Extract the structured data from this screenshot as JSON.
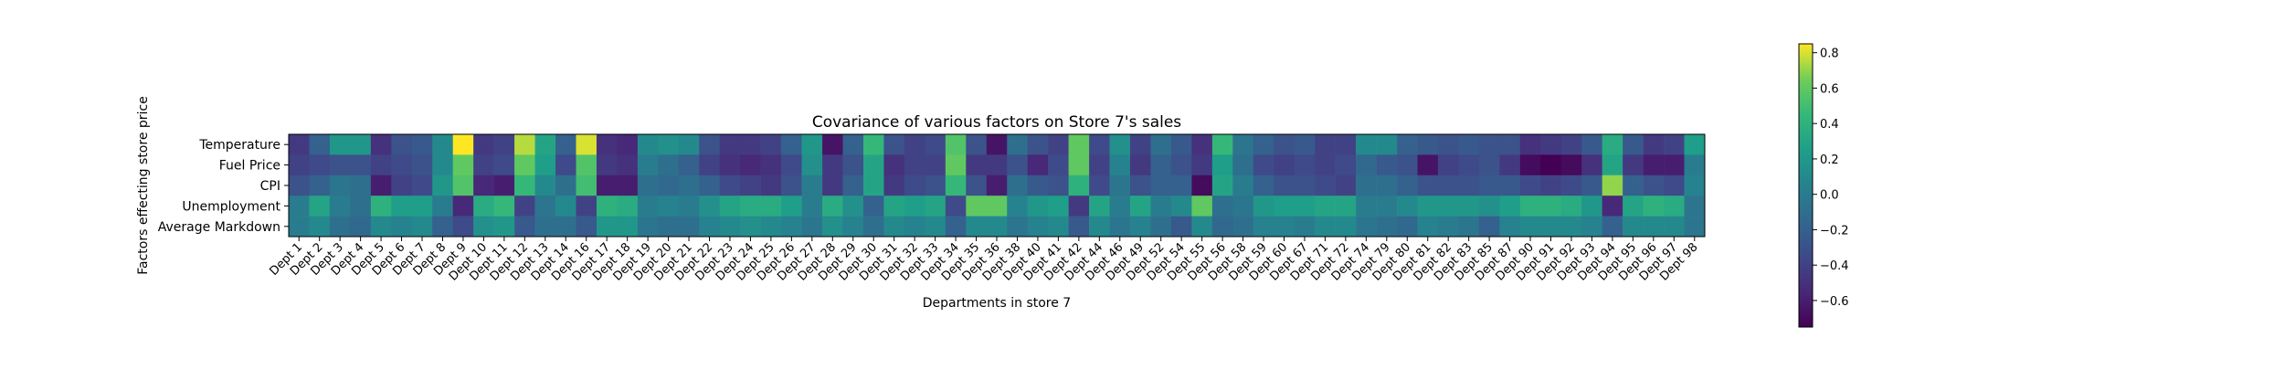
{
  "chart_data": {
    "type": "heatmap",
    "title": "Covariance of various factors on Store 7's sales",
    "xlabel": "Departments in store 7",
    "ylabel": "Factors effecting store price",
    "rows": [
      "Temperature",
      "Fuel Price",
      "CPI",
      "Unemployment",
      "Average Markdown"
    ],
    "columns": [
      "Dept 1",
      "Dept 2",
      "Dept 3",
      "Dept 4",
      "Dept 5",
      "Dept 6",
      "Dept 7",
      "Dept 8",
      "Dept 9",
      "Dept 10",
      "Dept 11",
      "Dept 12",
      "Dept 13",
      "Dept 14",
      "Dept 16",
      "Dept 17",
      "Dept 18",
      "Dept 19",
      "Dept 20",
      "Dept 21",
      "Dept 22",
      "Dept 23",
      "Dept 24",
      "Dept 25",
      "Dept 26",
      "Dept 27",
      "Dept 28",
      "Dept 29",
      "Dept 30",
      "Dept 31",
      "Dept 32",
      "Dept 33",
      "Dept 34",
      "Dept 35",
      "Dept 36",
      "Dept 38",
      "Dept 40",
      "Dept 41",
      "Dept 42",
      "Dept 44",
      "Dept 46",
      "Dept 49",
      "Dept 52",
      "Dept 54",
      "Dept 55",
      "Dept 56",
      "Dept 58",
      "Dept 59",
      "Dept 60",
      "Dept 67",
      "Dept 71",
      "Dept 72",
      "Dept 74",
      "Dept 79",
      "Dept 80",
      "Dept 81",
      "Dept 82",
      "Dept 83",
      "Dept 85",
      "Dept 87",
      "Dept 90",
      "Dept 91",
      "Dept 92",
      "Dept 93",
      "Dept 94",
      "Dept 95",
      "Dept 96",
      "Dept 97",
      "Dept 98"
    ],
    "values": [
      [
        -0.45,
        -0.2,
        0.2,
        0.2,
        -0.5,
        -0.3,
        -0.25,
        0.1,
        0.85,
        -0.45,
        -0.4,
        0.75,
        0.3,
        -0.2,
        0.8,
        -0.5,
        -0.55,
        0.1,
        0.15,
        0.1,
        -0.3,
        -0.45,
        -0.45,
        -0.4,
        -0.2,
        0.2,
        -0.65,
        -0.2,
        0.45,
        -0.3,
        -0.4,
        -0.35,
        0.55,
        -0.3,
        -0.65,
        -0.1,
        -0.3,
        -0.4,
        0.6,
        -0.35,
        0.15,
        -0.4,
        -0.1,
        -0.25,
        -0.5,
        0.45,
        -0.05,
        -0.2,
        -0.3,
        -0.25,
        -0.4,
        -0.4,
        0.1,
        0.1,
        -0.2,
        -0.25,
        -0.3,
        -0.25,
        -0.3,
        -0.3,
        -0.5,
        -0.45,
        -0.4,
        -0.25,
        0.35,
        -0.25,
        -0.45,
        -0.4,
        0.25
      ],
      [
        -0.4,
        -0.35,
        -0.3,
        -0.3,
        -0.4,
        -0.35,
        -0.3,
        0.1,
        0.6,
        -0.4,
        -0.35,
        0.6,
        0.25,
        -0.35,
        0.55,
        -0.45,
        -0.5,
        0.0,
        -0.1,
        -0.2,
        -0.4,
        -0.5,
        -0.55,
        -0.5,
        -0.35,
        0.15,
        -0.45,
        -0.3,
        0.3,
        -0.5,
        -0.4,
        -0.4,
        0.6,
        -0.45,
        -0.45,
        -0.3,
        -0.55,
        -0.35,
        0.6,
        -0.4,
        0.05,
        -0.45,
        -0.2,
        -0.3,
        -0.45,
        0.25,
        -0.1,
        -0.35,
        -0.4,
        -0.35,
        -0.4,
        -0.35,
        -0.15,
        -0.25,
        -0.3,
        -0.65,
        -0.4,
        -0.35,
        -0.3,
        -0.45,
        -0.7,
        -0.75,
        -0.7,
        -0.5,
        0.3,
        -0.45,
        -0.6,
        -0.6,
        0.0
      ],
      [
        -0.3,
        -0.2,
        -0.05,
        -0.1,
        -0.6,
        -0.4,
        -0.35,
        0.2,
        0.55,
        -0.55,
        -0.6,
        0.45,
        0.1,
        -0.1,
        0.5,
        -0.6,
        -0.6,
        -0.1,
        -0.15,
        -0.1,
        -0.2,
        -0.35,
        -0.4,
        -0.45,
        -0.3,
        0.0,
        -0.45,
        -0.2,
        0.3,
        -0.45,
        -0.35,
        -0.3,
        0.45,
        -0.3,
        -0.6,
        -0.1,
        -0.25,
        -0.3,
        0.4,
        -0.35,
        -0.05,
        -0.3,
        -0.2,
        -0.2,
        -0.7,
        0.3,
        0.0,
        -0.2,
        -0.3,
        -0.3,
        -0.35,
        -0.4,
        -0.1,
        -0.1,
        -0.2,
        -0.3,
        -0.3,
        -0.3,
        -0.25,
        -0.25,
        -0.35,
        -0.4,
        -0.35,
        -0.25,
        0.7,
        -0.2,
        -0.3,
        -0.35,
        0.05
      ],
      [
        0.0,
        0.3,
        0.0,
        -0.1,
        0.4,
        0.25,
        0.25,
        0.0,
        -0.55,
        0.35,
        0.45,
        -0.4,
        -0.05,
        0.1,
        -0.4,
        0.4,
        0.35,
        0.0,
        0.05,
        0.0,
        0.15,
        0.3,
        0.35,
        0.35,
        0.25,
        0.0,
        0.35,
        0.15,
        -0.2,
        0.3,
        0.25,
        0.3,
        -0.35,
        0.6,
        0.6,
        0.05,
        0.2,
        0.25,
        -0.45,
        0.3,
        0.0,
        0.3,
        0.0,
        0.1,
        0.6,
        -0.1,
        -0.05,
        0.2,
        0.25,
        0.25,
        0.3,
        0.3,
        0.0,
        0.0,
        0.1,
        0.2,
        0.2,
        0.2,
        0.15,
        0.25,
        0.4,
        0.4,
        0.35,
        0.2,
        -0.55,
        0.3,
        0.4,
        0.35,
        -0.05
      ],
      [
        0.0,
        0.1,
        -0.1,
        -0.15,
        0.1,
        0.05,
        0.1,
        -0.2,
        -0.35,
        0.15,
        0.2,
        -0.25,
        -0.1,
        -0.1,
        -0.25,
        0.2,
        0.2,
        -0.05,
        -0.1,
        -0.1,
        0.05,
        0.1,
        0.15,
        0.1,
        0.05,
        -0.05,
        0.15,
        0.05,
        -0.1,
        0.1,
        0.05,
        0.1,
        -0.2,
        0.1,
        0.1,
        -0.05,
        0.05,
        0.1,
        -0.25,
        0.1,
        -0.05,
        0.05,
        -0.1,
        -0.25,
        0.1,
        -0.15,
        -0.1,
        0.05,
        0.05,
        0.0,
        0.1,
        0.1,
        -0.05,
        -0.1,
        -0.15,
        0.05,
        0.0,
        -0.05,
        -0.2,
        0.05,
        0.1,
        0.1,
        0.1,
        0.05,
        -0.2,
        0.1,
        0.1,
        0.1,
        -0.05
      ]
    ],
    "colorbar": {
      "ticks": [
        "0.8",
        "0.6",
        "0.4",
        "0.2",
        "0.0",
        "−0.2",
        "−0.4",
        "−0.6"
      ],
      "tick_values": [
        0.8,
        0.6,
        0.4,
        0.2,
        0.0,
        -0.2,
        -0.4,
        -0.6
      ],
      "range": [
        -0.75,
        0.85
      ],
      "colormap": "viridis"
    }
  }
}
